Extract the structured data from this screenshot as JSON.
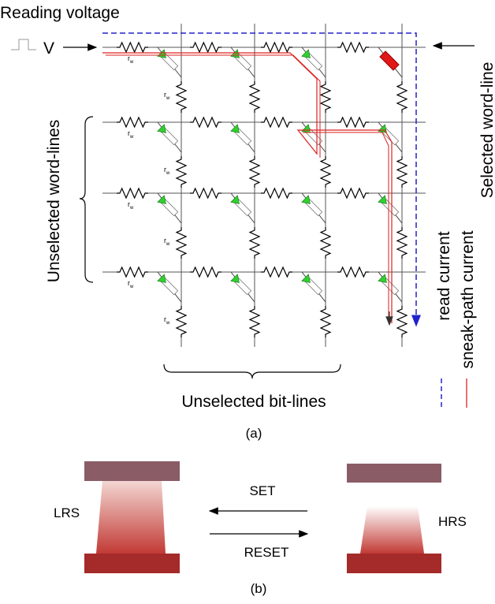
{
  "panel_a": {
    "reading_voltage": "Reading voltage",
    "source_label": "V",
    "resistor_label": {
      "base": "r",
      "sub": "w"
    },
    "selected_word_line": "Selected word-line",
    "unselected_word_lines": "Unselected word-lines",
    "unselected_bit_lines": "Unselected bit-lines",
    "legend": [
      {
        "label": "read current"
      },
      {
        "label": "sneak-path current"
      }
    ],
    "caption": "(a)"
  },
  "panel_b": {
    "lrs": "LRS",
    "hrs": "HRS",
    "set": "SET",
    "reset": "RESET",
    "caption": "(b)"
  }
}
